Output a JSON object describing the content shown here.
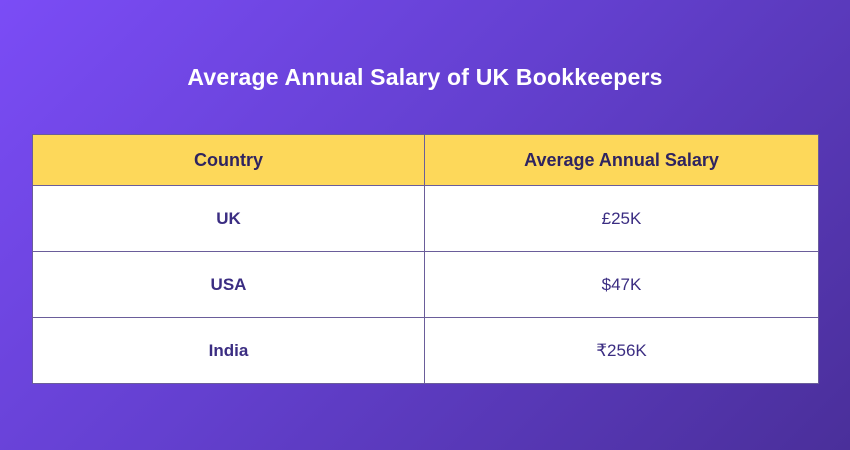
{
  "title": "Average Annual Salary of UK Bookkeepers",
  "table": {
    "headers": [
      "Country",
      "Average Annual Salary"
    ],
    "rows": [
      {
        "country": "UK",
        "salary": "£25K"
      },
      {
        "country": "USA",
        "salary": "$47K"
      },
      {
        "country": "India",
        "salary": "₹256K"
      }
    ]
  },
  "colors": {
    "background_start": "#7b4cf6",
    "background_end": "#4a2f9a",
    "header_fill": "#fdd85a",
    "text_dark": "#3b2d82",
    "title_text": "#ffffff"
  }
}
